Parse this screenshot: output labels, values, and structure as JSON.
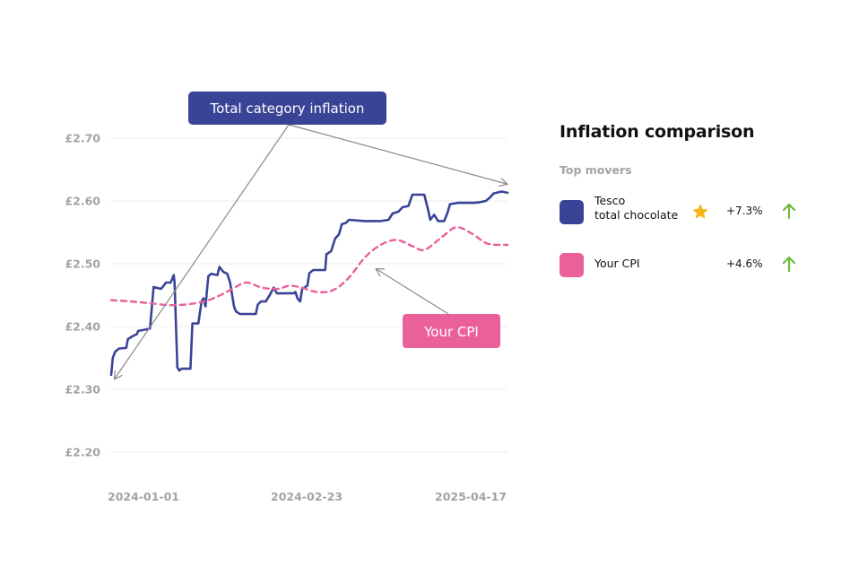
{
  "chart_data": {
    "type": "line",
    "y_ticks": [
      "£2.70",
      "£2.60",
      "£2.50",
      "£2.40",
      "£2.30",
      "£2.20"
    ],
    "y_tick_values": [
      2.7,
      2.6,
      2.5,
      2.4,
      2.3,
      2.2
    ],
    "ylim": [
      2.18,
      2.72
    ],
    "x_ticks": [
      "2024-01-01",
      "2024-02-23",
      "2025-04-17"
    ],
    "grid": true,
    "series": [
      {
        "name": "Total category inflation",
        "color": "#3a4496",
        "style": "solid",
        "points": [
          [
            0.0,
            2.323
          ],
          [
            0.004,
            2.35
          ],
          [
            0.01,
            2.36
          ],
          [
            0.02,
            2.365
          ],
          [
            0.038,
            2.366
          ],
          [
            0.042,
            2.38
          ],
          [
            0.055,
            2.385
          ],
          [
            0.065,
            2.388
          ],
          [
            0.068,
            2.393
          ],
          [
            0.085,
            2.395
          ],
          [
            0.098,
            2.397
          ],
          [
            0.107,
            2.463
          ],
          [
            0.125,
            2.46
          ],
          [
            0.13,
            2.463
          ],
          [
            0.138,
            2.47
          ],
          [
            0.15,
            2.47
          ],
          [
            0.158,
            2.482
          ],
          [
            0.16,
            2.47
          ],
          [
            0.167,
            2.335
          ],
          [
            0.172,
            2.33
          ],
          [
            0.178,
            2.333
          ],
          [
            0.2,
            2.333
          ],
          [
            0.205,
            2.405
          ],
          [
            0.22,
            2.405
          ],
          [
            0.228,
            2.44
          ],
          [
            0.233,
            2.445
          ],
          [
            0.238,
            2.432
          ],
          [
            0.245,
            2.48
          ],
          [
            0.252,
            2.484
          ],
          [
            0.268,
            2.482
          ],
          [
            0.273,
            2.495
          ],
          [
            0.283,
            2.487
          ],
          [
            0.293,
            2.484
          ],
          [
            0.3,
            2.47
          ],
          [
            0.31,
            2.432
          ],
          [
            0.315,
            2.424
          ],
          [
            0.325,
            2.42
          ],
          [
            0.345,
            2.42
          ],
          [
            0.365,
            2.42
          ],
          [
            0.37,
            2.435
          ],
          [
            0.378,
            2.44
          ],
          [
            0.39,
            2.44
          ],
          [
            0.4,
            2.45
          ],
          [
            0.41,
            2.462
          ],
          [
            0.418,
            2.453
          ],
          [
            0.44,
            2.453
          ],
          [
            0.46,
            2.453
          ],
          [
            0.465,
            2.455
          ],
          [
            0.47,
            2.445
          ],
          [
            0.477,
            2.44
          ],
          [
            0.482,
            2.46
          ],
          [
            0.495,
            2.465
          ],
          [
            0.5,
            2.485
          ],
          [
            0.51,
            2.49
          ],
          [
            0.54,
            2.49
          ],
          [
            0.543,
            2.515
          ],
          [
            0.555,
            2.52
          ],
          [
            0.565,
            2.54
          ],
          [
            0.575,
            2.547
          ],
          [
            0.582,
            2.563
          ],
          [
            0.592,
            2.565
          ],
          [
            0.6,
            2.57
          ],
          [
            0.64,
            2.568
          ],
          [
            0.68,
            2.568
          ],
          [
            0.7,
            2.57
          ],
          [
            0.71,
            2.58
          ],
          [
            0.725,
            2.583
          ],
          [
            0.735,
            2.59
          ],
          [
            0.75,
            2.592
          ],
          [
            0.76,
            2.61
          ],
          [
            0.79,
            2.61
          ],
          [
            0.8,
            2.585
          ],
          [
            0.805,
            2.57
          ],
          [
            0.815,
            2.578
          ],
          [
            0.825,
            2.568
          ],
          [
            0.84,
            2.568
          ],
          [
            0.848,
            2.58
          ],
          [
            0.855,
            2.595
          ],
          [
            0.875,
            2.597
          ],
          [
            0.9,
            2.597
          ],
          [
            0.915,
            2.597
          ],
          [
            0.93,
            2.598
          ],
          [
            0.945,
            2.6
          ],
          [
            0.955,
            2.605
          ],
          [
            0.965,
            2.612
          ],
          [
            0.985,
            2.615
          ],
          [
            1.0,
            2.613
          ]
        ]
      },
      {
        "name": "Your CPI",
        "color": "#e9609a",
        "style": "dashed",
        "points": [
          [
            0.0,
            2.442
          ],
          [
            0.05,
            2.44
          ],
          [
            0.1,
            2.437
          ],
          [
            0.15,
            2.434
          ],
          [
            0.2,
            2.436
          ],
          [
            0.25,
            2.443
          ],
          [
            0.3,
            2.458
          ],
          [
            0.34,
            2.47
          ],
          [
            0.38,
            2.462
          ],
          [
            0.42,
            2.46
          ],
          [
            0.45,
            2.465
          ],
          [
            0.48,
            2.462
          ],
          [
            0.52,
            2.455
          ],
          [
            0.56,
            2.458
          ],
          [
            0.6,
            2.478
          ],
          [
            0.64,
            2.51
          ],
          [
            0.68,
            2.53
          ],
          [
            0.72,
            2.538
          ],
          [
            0.76,
            2.528
          ],
          [
            0.79,
            2.522
          ],
          [
            0.83,
            2.54
          ],
          [
            0.87,
            2.558
          ],
          [
            0.91,
            2.548
          ],
          [
            0.95,
            2.532
          ],
          [
            1.0,
            2.53
          ]
        ]
      }
    ],
    "annotations": [
      {
        "text": "Total category inflation",
        "color": "#3a4496"
      },
      {
        "text": "Your CPI",
        "color": "#e9609a"
      }
    ]
  },
  "panel": {
    "title": "Inflation comparison",
    "subtitle": "Top movers",
    "movers": [
      {
        "name_line1": "Tesco",
        "name_line2": "total chocolate",
        "change": "+7.3%",
        "color": "#3a4496",
        "starred": true,
        "trend": "up",
        "arrow_color": "#6dbb3a",
        "star_color": "#f5b71c"
      },
      {
        "name_line1": "Your CPI",
        "change": "+4.6%",
        "color": "#e9609a",
        "starred": false,
        "trend": "up",
        "arrow_color": "#6dbb3a"
      }
    ]
  }
}
